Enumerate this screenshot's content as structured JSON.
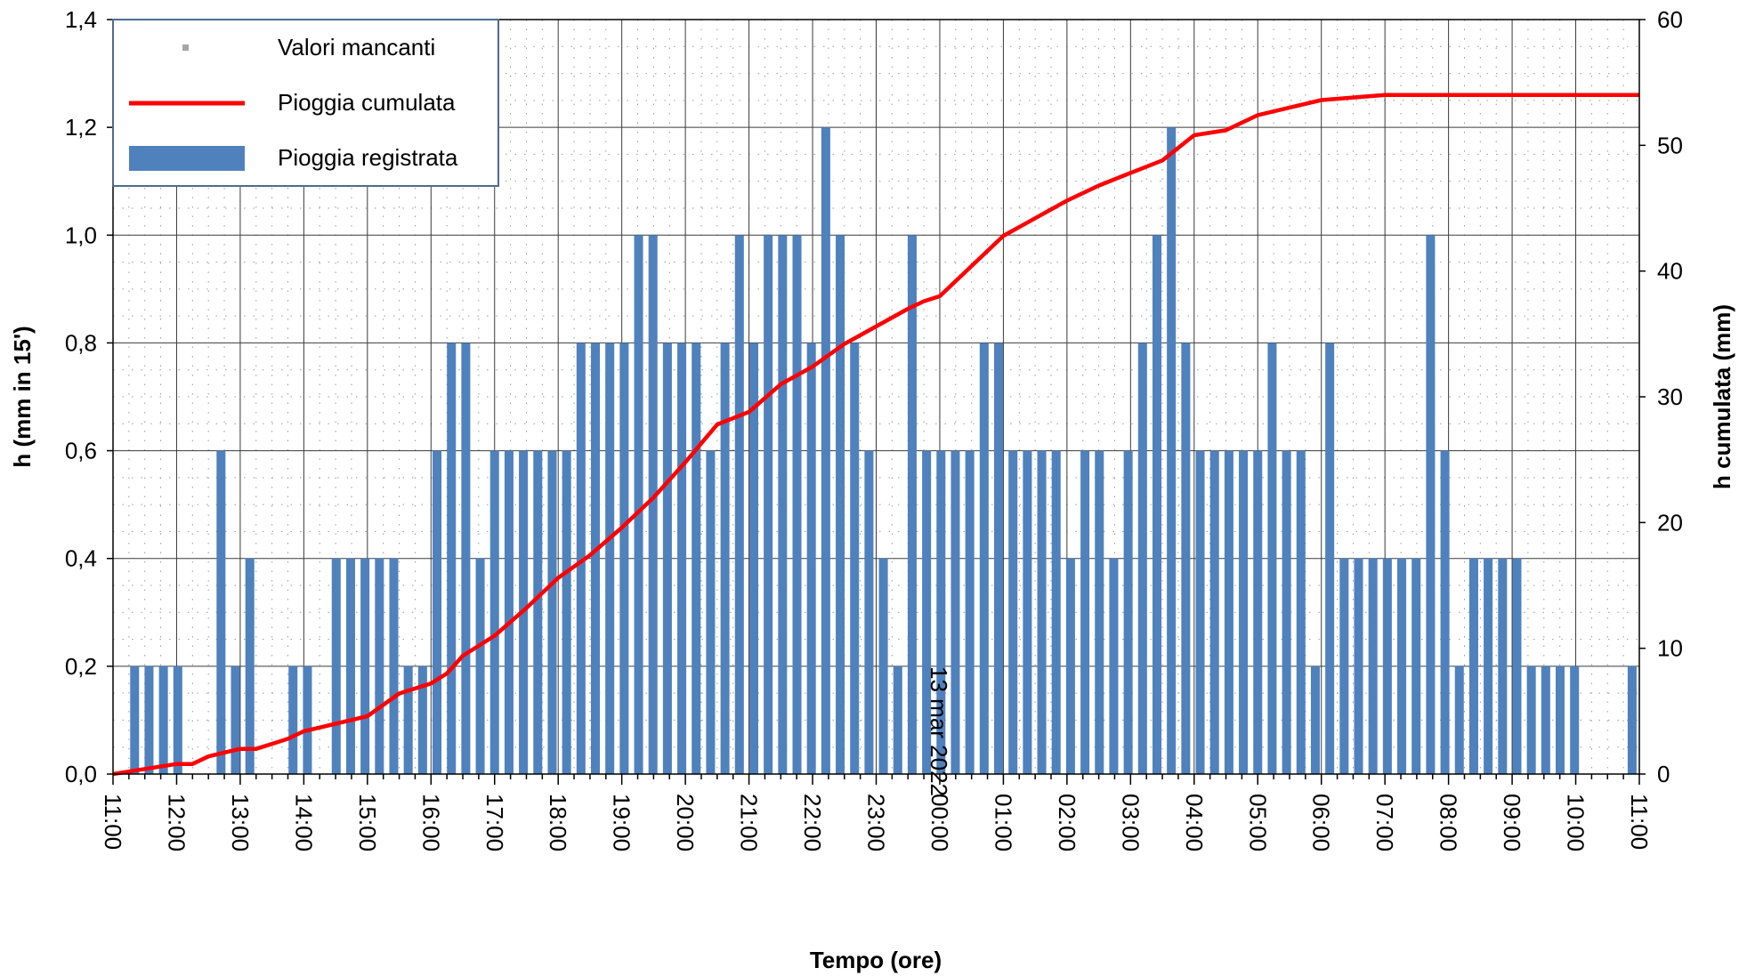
{
  "chart_data": {
    "type": "bar",
    "xlabel": "Tempo (ore)",
    "ylabel": "h (mm in 15')",
    "y2label": "h cumulata (mm)",
    "date_label": "13 mar 2022",
    "xlim": [
      "11:00",
      "11:00"
    ],
    "ylim": [
      0,
      1.4
    ],
    "y2lim": [
      0,
      60
    ],
    "y_ticks": [
      "0,0",
      "0,2",
      "0,4",
      "0,6",
      "0,8",
      "1,0",
      "1,2",
      "1,4"
    ],
    "y2_ticks": [
      "0",
      "10",
      "20",
      "30",
      "40",
      "50",
      "60"
    ],
    "x_ticks": [
      "11:00",
      "12:00",
      "13:00",
      "14:00",
      "15:00",
      "16:00",
      "17:00",
      "18:00",
      "19:00",
      "20:00",
      "21:00",
      "22:00",
      "23:00",
      "00:00",
      "01:00",
      "02:00",
      "03:00",
      "04:00",
      "05:00",
      "06:00",
      "07:00",
      "08:00",
      "09:00",
      "10:00",
      "11:00"
    ],
    "grid": true,
    "legend_position": "top-left",
    "legend": [
      "Valori mancanti",
      "Pioggia cumulata",
      "Pioggia registrata"
    ],
    "colors": {
      "bars": "#4F81BD",
      "line": "#FF0000",
      "missing": "#A6A6A6"
    },
    "series": [
      {
        "name": "Pioggia registrata",
        "type": "bar",
        "axis": "left",
        "values": [
          0,
          0.2,
          0.2,
          0.2,
          0.2,
          0,
          0,
          0.6,
          0.2,
          0.4,
          0,
          0,
          0.2,
          0.2,
          0,
          0.4,
          0.4,
          0.4,
          0.4,
          0.4,
          0.2,
          0.2,
          0.6,
          0.8,
          0.8,
          0.4,
          0.6,
          0.6,
          0.6,
          0.6,
          0.6,
          0.6,
          0.8,
          0.8,
          0.8,
          0.8,
          1.0,
          1.0,
          0.8,
          0.8,
          0.8,
          0.6,
          0.8,
          1.0,
          0.8,
          1.0,
          1.0,
          1.0,
          0.8,
          1.2,
          1.0,
          0.8,
          0.6,
          0.4,
          0.2,
          1.0,
          0.6,
          0.6,
          0.6,
          0.6,
          0.8,
          0.8,
          0.6,
          0.6,
          0.6,
          0.6,
          0.4,
          0.6,
          0.6,
          0.4,
          0.6,
          0.8,
          1.0,
          1.2,
          0.8,
          0.6,
          0.6,
          0.6,
          0.6,
          0.6,
          0.8,
          0.6,
          0.6,
          0.2,
          0.8,
          0.4,
          0.4,
          0.4,
          0.4,
          0.4,
          0.4,
          1.0,
          0.6,
          0.2,
          0.4,
          0.4,
          0.4,
          0.4,
          0.2,
          0.2,
          0.2,
          0.2,
          0,
          0,
          0,
          0.2
        ]
      },
      {
        "name": "Pioggia cumulata",
        "type": "line",
        "axis": "right",
        "x_hours": [
          0,
          0.5,
          1,
          1.25,
          1.5,
          2,
          2.25,
          2.5,
          2.75,
          3,
          3.5,
          4,
          4.5,
          5,
          5.25,
          5.5,
          6,
          6.5,
          7,
          7.5,
          8,
          8.5,
          9,
          9.5,
          10,
          10.5,
          11,
          11.5,
          12,
          12.5,
          12.75,
          13,
          13.5,
          14,
          14.5,
          15,
          15.5,
          16,
          16.5,
          17,
          17.5,
          18,
          18.5,
          19,
          19.5,
          20,
          20.5,
          21,
          21.5,
          22,
          22.5,
          23,
          23.5,
          23.75,
          24
        ],
        "values": [
          0,
          0.4,
          0.8,
          0.8,
          1.4,
          2.0,
          2.0,
          2.4,
          2.8,
          3.4,
          4.0,
          4.6,
          6.4,
          7.2,
          8.0,
          9.4,
          11.0,
          13.2,
          15.6,
          17.4,
          19.6,
          22.0,
          24.8,
          27.8,
          28.8,
          31.0,
          32.4,
          34.2,
          35.6,
          37.0,
          37.6,
          38.0,
          40.4,
          42.8,
          44.2,
          45.6,
          46.8,
          47.8,
          48.8,
          50.8,
          51.2,
          52.4,
          53.0,
          53.6,
          53.8,
          54.0,
          54.0,
          54.0,
          54.0,
          54.0,
          54.0,
          54.0,
          54.0,
          54.0,
          54.0
        ]
      }
    ]
  }
}
